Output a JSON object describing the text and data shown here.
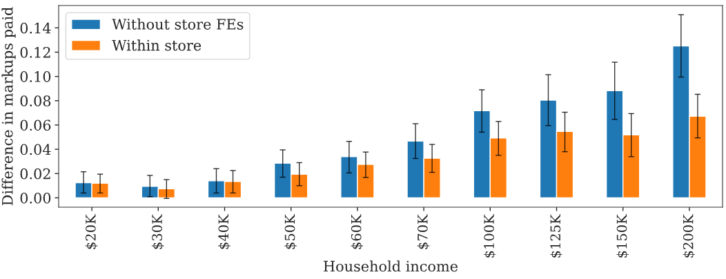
{
  "chart_data": {
    "type": "bar",
    "xlabel": "Household income",
    "ylabel": "Difference in markups paid",
    "categories": [
      "$20K",
      "$30K",
      "$40K",
      "$50K",
      "$60K",
      "$70K",
      "$100K",
      "$125K",
      "$150K",
      "$200K"
    ],
    "series": [
      {
        "name": "Without store FEs",
        "color": "#1f77b4",
        "values": [
          0.0125,
          0.0095,
          0.014,
          0.0285,
          0.034,
          0.0468,
          0.0717,
          0.0805,
          0.0882,
          0.1251
        ],
        "errors": [
          [
            0.004,
            0.0215
          ],
          [
            0.001,
            0.0185
          ],
          [
            0.004,
            0.024
          ],
          [
            0.017,
            0.0395
          ],
          [
            0.0205,
            0.0465
          ],
          [
            0.0324,
            0.061
          ],
          [
            0.0541,
            0.089
          ],
          [
            0.0595,
            0.1014
          ],
          [
            0.0646,
            0.1117
          ],
          [
            0.0995,
            0.1508
          ]
        ]
      },
      {
        "name": "Within store",
        "color": "#ff7f0e",
        "values": [
          0.012,
          0.0075,
          0.0135,
          0.0195,
          0.0276,
          0.0326,
          0.0493,
          0.0547,
          0.0519,
          0.0672
        ],
        "errors": [
          [
            0.004,
            0.0195
          ],
          [
            -0.0005,
            0.015
          ],
          [
            0.004,
            0.0225
          ],
          [
            0.01,
            0.029
          ],
          [
            0.0168,
            0.0377
          ],
          [
            0.021,
            0.044
          ],
          [
            0.035,
            0.0629
          ],
          [
            0.038,
            0.0705
          ],
          [
            0.0339,
            0.0694
          ],
          [
            0.0494,
            0.0853
          ]
        ]
      }
    ],
    "ylim": [
      -0.0077,
      0.1584
    ],
    "yticks": [
      {
        "value": 0,
        "label": "0.00"
      },
      {
        "value": 0.02,
        "label": "0.02"
      },
      {
        "value": 0.04,
        "label": "0.04"
      },
      {
        "value": 0.06,
        "label": "0.06"
      },
      {
        "value": 0.08,
        "label": "0.08"
      },
      {
        "value": 0.1,
        "label": "0.10"
      },
      {
        "value": 0.12,
        "label": "0.12"
      },
      {
        "value": 0.14,
        "label": "0.14"
      }
    ],
    "legend": "top left",
    "grid": false
  }
}
